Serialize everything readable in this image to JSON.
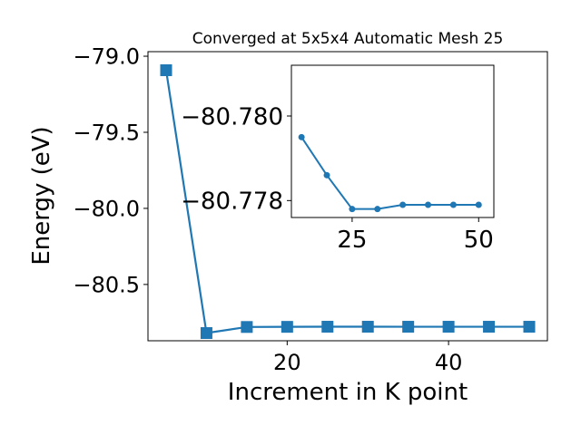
{
  "chart_data": [
    {
      "type": "line",
      "title": "Converged at 5x5x4 Automatic Mesh 25",
      "xlabel": "Increment in K point",
      "ylabel": "Energy (eV)",
      "xlim": [
        2.75,
        52.25
      ],
      "ylim": [
        -80.87,
        -78.97
      ],
      "xticks": [
        20,
        40
      ],
      "xtick_labels": [
        "20",
        "40"
      ],
      "yticks": [
        -79.0,
        -79.5,
        -80.0,
        -80.5
      ],
      "ytick_labels": [
        "−79.0",
        "−79.5",
        "−80.0",
        "−80.5"
      ],
      "marker": "square",
      "color": "#1f77b4",
      "grid": false,
      "series": [
        {
          "x": [
            5,
            10,
            15,
            20,
            25,
            30,
            35,
            40,
            45,
            50
          ],
          "y": [
            -79.092,
            -80.8195,
            -80.7795,
            -80.7786,
            -80.7778,
            -80.7778,
            -80.7779,
            -80.7779,
            -80.7779,
            -80.7779
          ]
        }
      ]
    },
    {
      "type": "line",
      "title": "",
      "xlabel": "",
      "ylabel": "",
      "xlim": [
        13,
        53
      ],
      "ylim": [
        -80.7776,
        -80.7812
      ],
      "xticks": [
        25,
        50
      ],
      "xtick_labels": [
        "25",
        "50"
      ],
      "yticks": [
        -80.778,
        -80.78
      ],
      "ytick_labels": [
        "−80.778",
        "−80.780"
      ],
      "marker": "circle",
      "color": "#1f77b4",
      "grid": false,
      "series": [
        {
          "x": [
            15,
            20,
            25,
            30,
            35,
            40,
            45,
            50
          ],
          "y": [
            -80.7795,
            -80.7786,
            -80.7778,
            -80.7778,
            -80.7779,
            -80.7779,
            -80.7779,
            -80.7779
          ]
        }
      ]
    }
  ]
}
